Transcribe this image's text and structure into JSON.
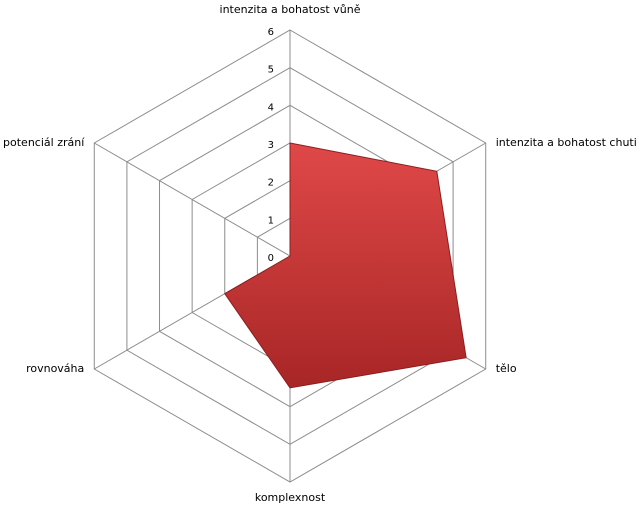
{
  "chart_data": {
    "type": "radar",
    "categories": [
      "intenzita a bohatost vůně",
      "intenzita a bohatost chuti",
      "tělo",
      "komplexnost",
      "rovnováha",
      "potenciál zrání"
    ],
    "series": [
      {
        "color": "#c0392b",
        "values": [
          3,
          4.5,
          5.4,
          3.5,
          2,
          0
        ]
      }
    ],
    "ylim": [
      0,
      6
    ],
    "yticks": [
      0,
      1,
      2,
      3,
      4,
      5,
      6
    ],
    "grid": true
  }
}
